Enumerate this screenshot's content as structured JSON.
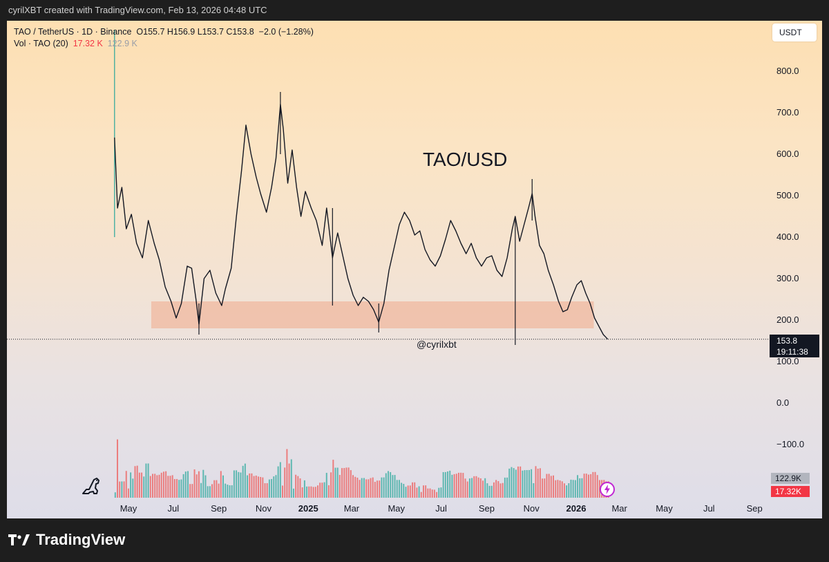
{
  "header": {
    "caption": "cyrilXBT created with TradingView.com, Feb 13, 2026 04:48 UTC"
  },
  "legend": {
    "symbol_line": "TAO / TetherUS · 1D · Binance",
    "open": "O155.7",
    "high": "H156.9",
    "low": "L153.7",
    "close": "C153.8",
    "change": "−2.0 (−1.28%)",
    "vol_label": "Vol · TAO (20)",
    "vol_current": "17.32 K",
    "vol_ma": "122.9 K"
  },
  "currency_button": "USDT",
  "watermark": {
    "title": "TAO/USD",
    "handle": "@cyrilxbt"
  },
  "last_price": {
    "price": "153.8",
    "countdown": "19:11:38"
  },
  "volume_tags": {
    "ma": "122.9K",
    "current": "17.32K"
  },
  "brand": {
    "name": "TradingView"
  },
  "colors": {
    "up": "#26a69a",
    "down": "#ef5350",
    "zone": "#f1a98a",
    "text": "#131722"
  },
  "icons": [
    "dinosaur-icon",
    "lightning-icon",
    "tradingview-logo-icon"
  ],
  "chart_data": {
    "type": "line",
    "title": "TAO/USD",
    "xlabel": "",
    "ylabel": "",
    "ylim": [
      55,
      900
    ],
    "grid": false,
    "price_ticks": [
      800,
      700,
      600,
      500,
      400,
      300,
      200,
      100,
      0,
      -100
    ],
    "price_tick_labels": [
      "800.0",
      "700.0",
      "600.0",
      "500.0",
      "400.0",
      "300.0",
      "200.0",
      "100.0",
      "0.0",
      "−100.0"
    ],
    "x_ticks": [
      {
        "date": "2024-05-01",
        "label": "May",
        "bold": false
      },
      {
        "date": "2024-07-01",
        "label": "Jul",
        "bold": false
      },
      {
        "date": "2024-09-01",
        "label": "Sep",
        "bold": false
      },
      {
        "date": "2024-11-01",
        "label": "Nov",
        "bold": false
      },
      {
        "date": "2025-01-01",
        "label": "2025",
        "bold": true
      },
      {
        "date": "2025-03-01",
        "label": "Mar",
        "bold": false
      },
      {
        "date": "2025-05-01",
        "label": "May",
        "bold": false
      },
      {
        "date": "2025-07-01",
        "label": "Jul",
        "bold": false
      },
      {
        "date": "2025-09-01",
        "label": "Sep",
        "bold": false
      },
      {
        "date": "2025-11-01",
        "label": "Nov",
        "bold": false
      },
      {
        "date": "2026-01-01",
        "label": "2026",
        "bold": true
      },
      {
        "date": "2026-03-01",
        "label": "Mar",
        "bold": false
      },
      {
        "date": "2026-05-01",
        "label": "May",
        "bold": false
      },
      {
        "date": "2026-07-01",
        "label": "Jul",
        "bold": false
      },
      {
        "date": "2026-09-01",
        "label": "Sep",
        "bold": false
      }
    ],
    "last_price": 153.8,
    "support_zone": {
      "from": "2024-06-01",
      "to": "2026-01-25",
      "low": 180,
      "high": 245
    },
    "series": [
      {
        "points": [
          [
            "2024-04-12",
            640
          ],
          [
            "2024-04-16",
            470
          ],
          [
            "2024-04-22",
            520
          ],
          [
            "2024-04-28",
            420
          ],
          [
            "2024-05-05",
            455
          ],
          [
            "2024-05-12",
            385
          ],
          [
            "2024-05-20",
            350
          ],
          [
            "2024-05-28",
            440
          ],
          [
            "2024-06-05",
            385
          ],
          [
            "2024-06-12",
            345
          ],
          [
            "2024-06-20",
            280
          ],
          [
            "2024-06-28",
            245
          ],
          [
            "2024-07-05",
            205
          ],
          [
            "2024-07-12",
            240
          ],
          [
            "2024-07-20",
            330
          ],
          [
            "2024-07-26",
            325
          ],
          [
            "2024-08-01",
            250
          ],
          [
            "2024-08-05",
            190
          ],
          [
            "2024-08-12",
            300
          ],
          [
            "2024-08-20",
            320
          ],
          [
            "2024-08-28",
            265
          ],
          [
            "2024-09-05",
            235
          ],
          [
            "2024-09-10",
            275
          ],
          [
            "2024-09-18",
            325
          ],
          [
            "2024-09-25",
            450
          ],
          [
            "2024-10-02",
            560
          ],
          [
            "2024-10-08",
            670
          ],
          [
            "2024-10-15",
            600
          ],
          [
            "2024-10-22",
            545
          ],
          [
            "2024-10-28",
            505
          ],
          [
            "2024-11-05",
            460
          ],
          [
            "2024-11-12",
            520
          ],
          [
            "2024-11-18",
            590
          ],
          [
            "2024-11-24",
            720
          ],
          [
            "2024-11-28",
            660
          ],
          [
            "2024-12-04",
            530
          ],
          [
            "2024-12-10",
            610
          ],
          [
            "2024-12-16",
            520
          ],
          [
            "2024-12-22",
            450
          ],
          [
            "2024-12-28",
            510
          ],
          [
            "2025-01-05",
            470
          ],
          [
            "2025-01-12",
            440
          ],
          [
            "2025-01-20",
            380
          ],
          [
            "2025-01-26",
            470
          ],
          [
            "2025-02-03",
            350
          ],
          [
            "2025-02-10",
            410
          ],
          [
            "2025-02-17",
            355
          ],
          [
            "2025-02-24",
            300
          ],
          [
            "2025-03-03",
            260
          ],
          [
            "2025-03-10",
            235
          ],
          [
            "2025-03-17",
            255
          ],
          [
            "2025-03-24",
            245
          ],
          [
            "2025-03-31",
            225
          ],
          [
            "2025-04-07",
            195
          ],
          [
            "2025-04-14",
            240
          ],
          [
            "2025-04-21",
            320
          ],
          [
            "2025-04-28",
            375
          ],
          [
            "2025-05-05",
            430
          ],
          [
            "2025-05-12",
            460
          ],
          [
            "2025-05-19",
            440
          ],
          [
            "2025-05-26",
            405
          ],
          [
            "2025-06-02",
            415
          ],
          [
            "2025-06-09",
            370
          ],
          [
            "2025-06-16",
            345
          ],
          [
            "2025-06-23",
            330
          ],
          [
            "2025-06-30",
            355
          ],
          [
            "2025-07-07",
            395
          ],
          [
            "2025-07-14",
            440
          ],
          [
            "2025-07-21",
            415
          ],
          [
            "2025-07-28",
            385
          ],
          [
            "2025-08-04",
            360
          ],
          [
            "2025-08-11",
            385
          ],
          [
            "2025-08-18",
            350
          ],
          [
            "2025-08-25",
            330
          ],
          [
            "2025-09-01",
            350
          ],
          [
            "2025-09-08",
            355
          ],
          [
            "2025-09-15",
            320
          ],
          [
            "2025-09-22",
            305
          ],
          [
            "2025-09-29",
            350
          ],
          [
            "2025-10-06",
            420
          ],
          [
            "2025-10-10",
            450
          ],
          [
            "2025-10-16",
            390
          ],
          [
            "2025-10-22",
            430
          ],
          [
            "2025-10-28",
            470
          ],
          [
            "2025-11-02",
            505
          ],
          [
            "2025-11-06",
            450
          ],
          [
            "2025-11-12",
            380
          ],
          [
            "2025-11-18",
            360
          ],
          [
            "2025-11-24",
            320
          ],
          [
            "2025-12-01",
            285
          ],
          [
            "2025-12-08",
            245
          ],
          [
            "2025-12-14",
            220
          ],
          [
            "2025-12-20",
            225
          ],
          [
            "2025-12-26",
            255
          ],
          [
            "2026-01-02",
            285
          ],
          [
            "2026-01-08",
            295
          ],
          [
            "2026-01-14",
            265
          ],
          [
            "2026-01-20",
            240
          ],
          [
            "2026-01-26",
            205
          ],
          [
            "2026-02-01",
            185
          ],
          [
            "2026-02-07",
            165
          ],
          [
            "2026-02-13",
            153.8
          ]
        ]
      }
    ],
    "spikes": [
      {
        "date": "2024-04-12",
        "high": 900,
        "low": 400
      },
      {
        "date": "2024-11-24",
        "high": 750,
        "low": 600
      },
      {
        "date": "2025-02-03",
        "high": 470,
        "low": 235
      },
      {
        "date": "2025-04-07",
        "high": 240,
        "low": 170
      },
      {
        "date": "2024-08-05",
        "high": 240,
        "low": 165
      },
      {
        "date": "2025-10-10",
        "high": 450,
        "low": 140
      },
      {
        "date": "2025-11-02",
        "high": 540,
        "low": 440
      }
    ]
  }
}
